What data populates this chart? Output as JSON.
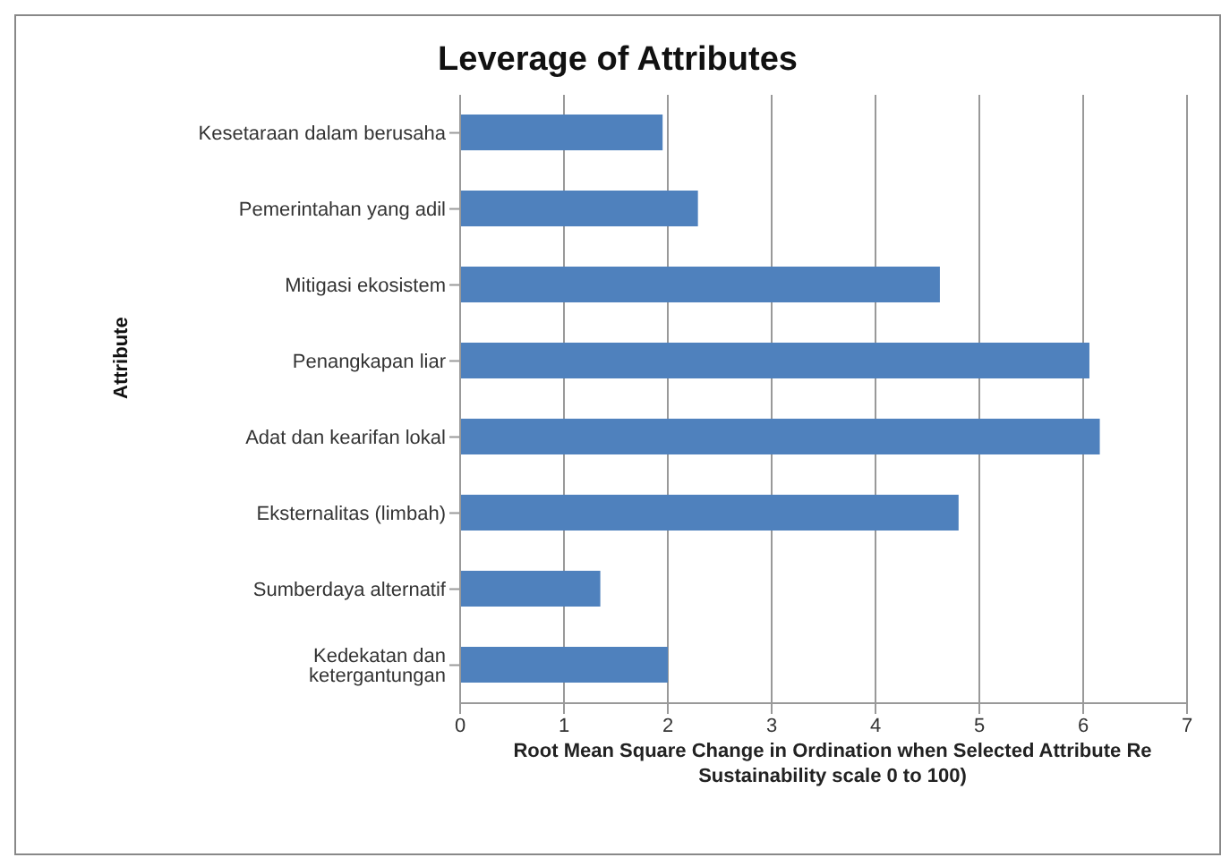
{
  "chart_data": {
    "type": "bar",
    "orientation": "horizontal",
    "title": "Leverage of Attributes",
    "xlabel": "Root Mean Square Change in Ordination when Selected Attribute Re\nSustainability scale 0 to 100)",
    "ylabel": "Attribute",
    "categories": [
      "Kesetaraan dalam berusaha",
      "Pemerintahan yang adil",
      "Mitigasi ekosistem",
      "Penangkapan liar",
      "Adat dan kearifan lokal",
      "Eksternalitas (limbah)",
      "Sumberdaya alternatif",
      "Kedekatan dan ketergantungan"
    ],
    "values": [
      1.95,
      2.29,
      4.62,
      6.06,
      6.16,
      4.8,
      1.35,
      2.0
    ],
    "color": "#4f81bd",
    "xlim": [
      0,
      7
    ],
    "xticks": [
      0,
      1,
      2,
      3,
      4,
      5,
      6,
      7
    ],
    "grid": "x"
  }
}
